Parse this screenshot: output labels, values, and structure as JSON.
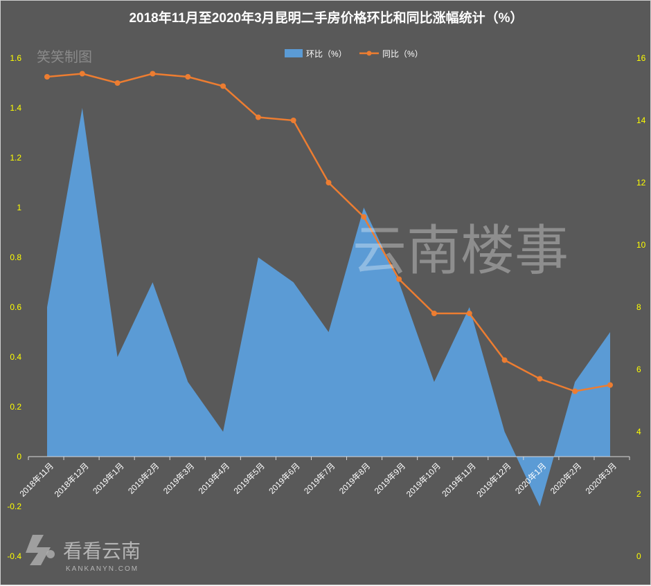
{
  "chart_data": {
    "title": "2018年11月至2020年3月昆明二手房价格环比和同比涨幅统计（%）",
    "type": "area+line",
    "categories": [
      "2018年11月",
      "2018年12月",
      "2019年1月",
      "2019年2月",
      "2019年3月",
      "2019年4月",
      "2019年5月",
      "2019年6月",
      "2019年7月",
      "2019年8月",
      "2019年9月",
      "2019年10月",
      "2019年11月",
      "2019年12月",
      "2020年1月",
      "2020年2月",
      "2020年3月"
    ],
    "series": [
      {
        "name": "环比（%）",
        "type": "area",
        "axis": "left",
        "color": "#5b9bd5",
        "values": [
          0.6,
          1.4,
          0.4,
          0.7,
          0.3,
          0.1,
          0.8,
          0.7,
          0.5,
          1.0,
          0.7,
          0.3,
          0.6,
          0.1,
          -0.2,
          0.3,
          0.5
        ]
      },
      {
        "name": "同比（%）",
        "type": "line",
        "axis": "right",
        "color": "#ed7d31",
        "values": [
          15.4,
          15.5,
          15.2,
          15.5,
          15.4,
          15.1,
          14.1,
          14.0,
          12.0,
          10.9,
          8.9,
          7.8,
          7.8,
          6.3,
          5.7,
          5.3,
          5.5
        ]
      }
    ],
    "y_left": {
      "min": -0.4,
      "max": 1.6,
      "ticks": [
        "1.6",
        "1.4",
        "1.2",
        "1",
        "0.8",
        "0.6",
        "0.4",
        "0.2",
        "0",
        "-0.2",
        "-0.4"
      ]
    },
    "y_right": {
      "min": 0,
      "max": 16,
      "ticks": [
        "16",
        "14",
        "12",
        "10",
        "8",
        "6",
        "4",
        "2",
        "0"
      ]
    },
    "legend_position": "top-center",
    "grid": false,
    "axis_tick_color": "#ffff00",
    "background_color": "#595959"
  },
  "watermarks": {
    "top_left": "笑笑制图",
    "center": "云南楼事",
    "logo_name": "看看云南",
    "logo_url": "KANKANYN.COM"
  }
}
